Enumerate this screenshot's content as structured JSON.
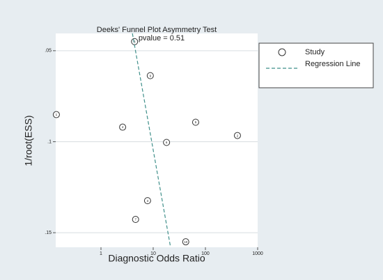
{
  "chart_data": {
    "type": "scatter",
    "title": "Deeks' Funnel Plot Asymmetry Test",
    "subtitle": "pvalue =  0.51",
    "xlabel": "Diagnostic Odds Ratio",
    "ylabel": "1/root(ESS)",
    "xscale": "log",
    "y_inverted": true,
    "xlim": [
      0.136,
      1000
    ],
    "ylim": [
      0.0405,
      0.158
    ],
    "xticks": [
      1,
      10,
      100,
      1000
    ],
    "yticks": [
      {
        "value": 0.05,
        "label": ".05"
      },
      {
        "value": 0.1,
        "label": ".1"
      },
      {
        "value": 0.15,
        "label": ".15"
      }
    ],
    "grid": true,
    "series": [
      {
        "name": "Study",
        "color": "#333333",
        "labels": [
          "1",
          "2",
          "3",
          "4",
          "5",
          "6",
          "7",
          "8",
          "9",
          "10"
        ],
        "x": [
          0.14,
          410,
          7.8,
          2.6,
          65,
          18,
          4.6,
          4.4,
          8.8,
          42
        ],
        "values": [
          0.0851,
          0.0966,
          0.1324,
          0.092,
          0.0893,
          0.1004,
          0.1427,
          0.045,
          0.0637,
          0.155
        ]
      },
      {
        "name": "Regression Line",
        "type": "line",
        "color": "#3f8f8a",
        "x": [
          4,
          21.5
        ],
        "values": [
          0.0405,
          0.158
        ]
      }
    ]
  }
}
